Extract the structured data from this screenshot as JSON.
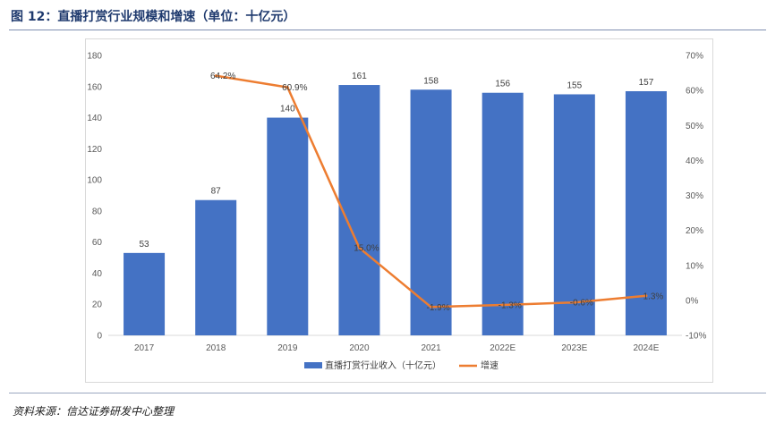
{
  "figure": {
    "title": "图 12：直播打赏行业规模和增速（单位：十亿元）",
    "source": "资料来源：信达证券研发中心整理"
  },
  "colors": {
    "bar": "#4472C4",
    "line": "#ED7D31",
    "axis_text": "#595959",
    "title": "#1f3a6e"
  },
  "chart_data": {
    "type": "bar",
    "categories": [
      "2017",
      "2018",
      "2019",
      "2020",
      "2021",
      "2022E",
      "2023E",
      "2024E"
    ],
    "series": [
      {
        "name": "直播打赏行业收入（十亿元）",
        "type": "bar",
        "axis": "left",
        "values": [
          53,
          87,
          140,
          161,
          158,
          156,
          155,
          157
        ],
        "labels": [
          "53",
          "87",
          "140",
          "161",
          "158",
          "156",
          "155",
          "157"
        ]
      },
      {
        "name": "增速",
        "type": "line",
        "axis": "right",
        "values": [
          null,
          64.2,
          60.9,
          15.0,
          -1.9,
          -1.3,
          -0.6,
          1.3
        ],
        "labels": [
          "",
          "64.2%",
          "60.9%",
          "15.0%",
          "-1.9%",
          "-1.3%",
          "-0.6%",
          "1.3%"
        ]
      }
    ],
    "y_left": {
      "ylim": [
        0,
        180
      ],
      "ticks": [
        "0",
        "20",
        "40",
        "60",
        "80",
        "100",
        "120",
        "140",
        "160",
        "180"
      ]
    },
    "y_right": {
      "ylim": [
        -10,
        70
      ],
      "ticks": [
        "-10%",
        "0%",
        "10%",
        "20%",
        "30%",
        "40%",
        "50%",
        "60%",
        "70%"
      ]
    },
    "grid": false,
    "legend_position": "bottom"
  }
}
